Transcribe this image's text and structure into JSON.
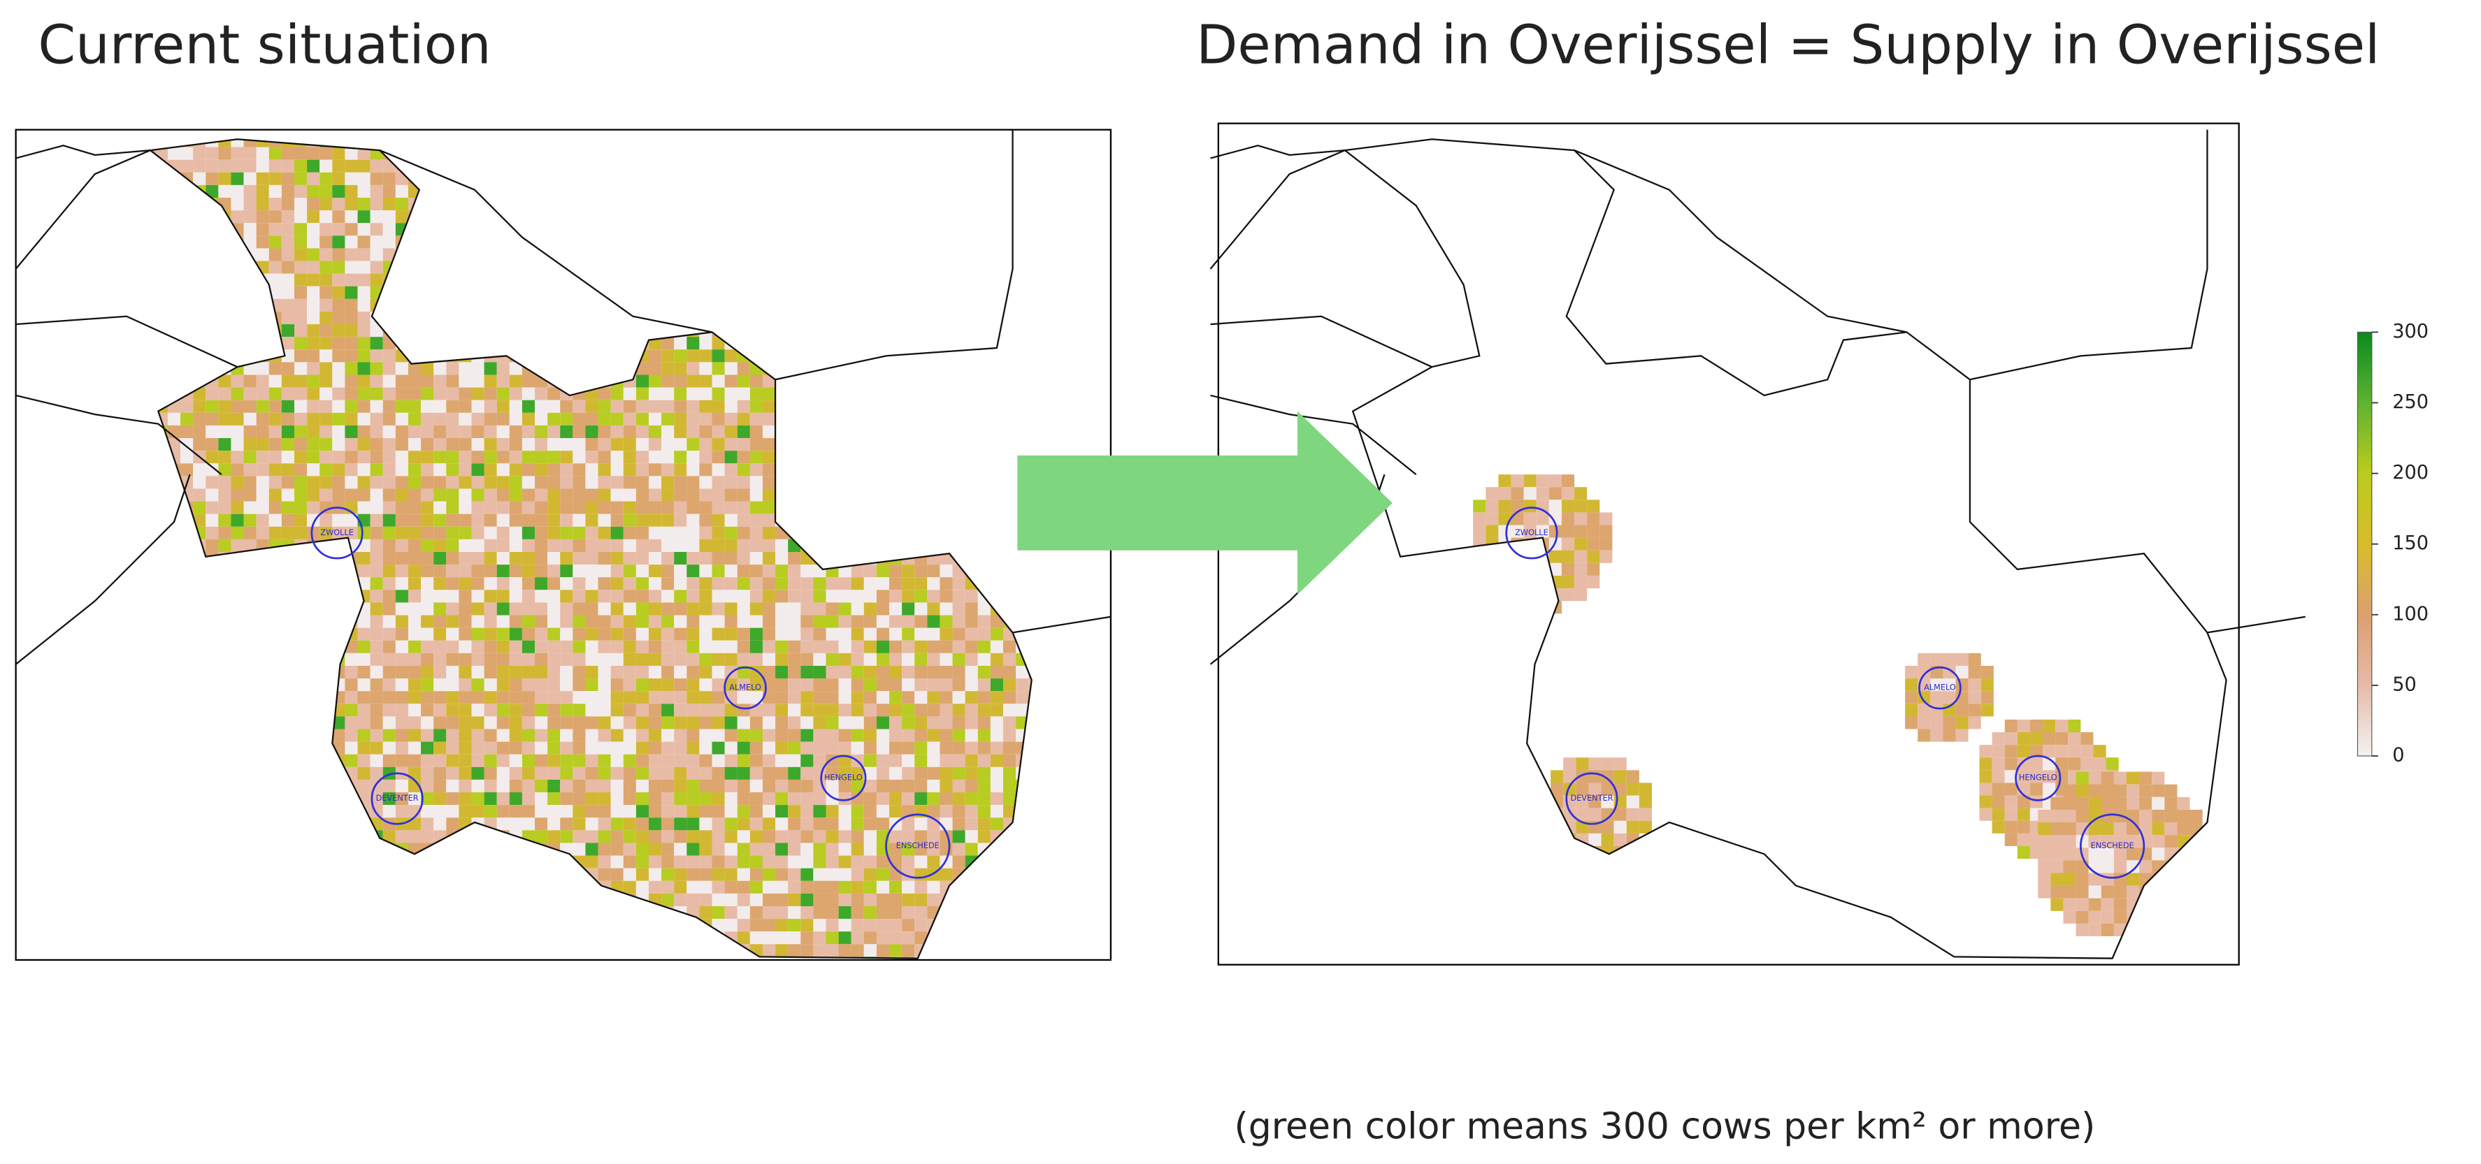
{
  "panels": [
    {
      "title": "Current situation"
    },
    {
      "title": "Demand in Overijssel = Supply in Overijssel"
    }
  ],
  "cities": [
    "ZWOLLE",
    "ALMELO",
    "DEVENTER",
    "HENGELO",
    "ENSCHEDE"
  ],
  "legend": {
    "ticks": [
      0,
      50,
      100,
      150,
      200,
      250,
      300
    ]
  },
  "note": "(green color means 300 cows per km² or more)"
}
